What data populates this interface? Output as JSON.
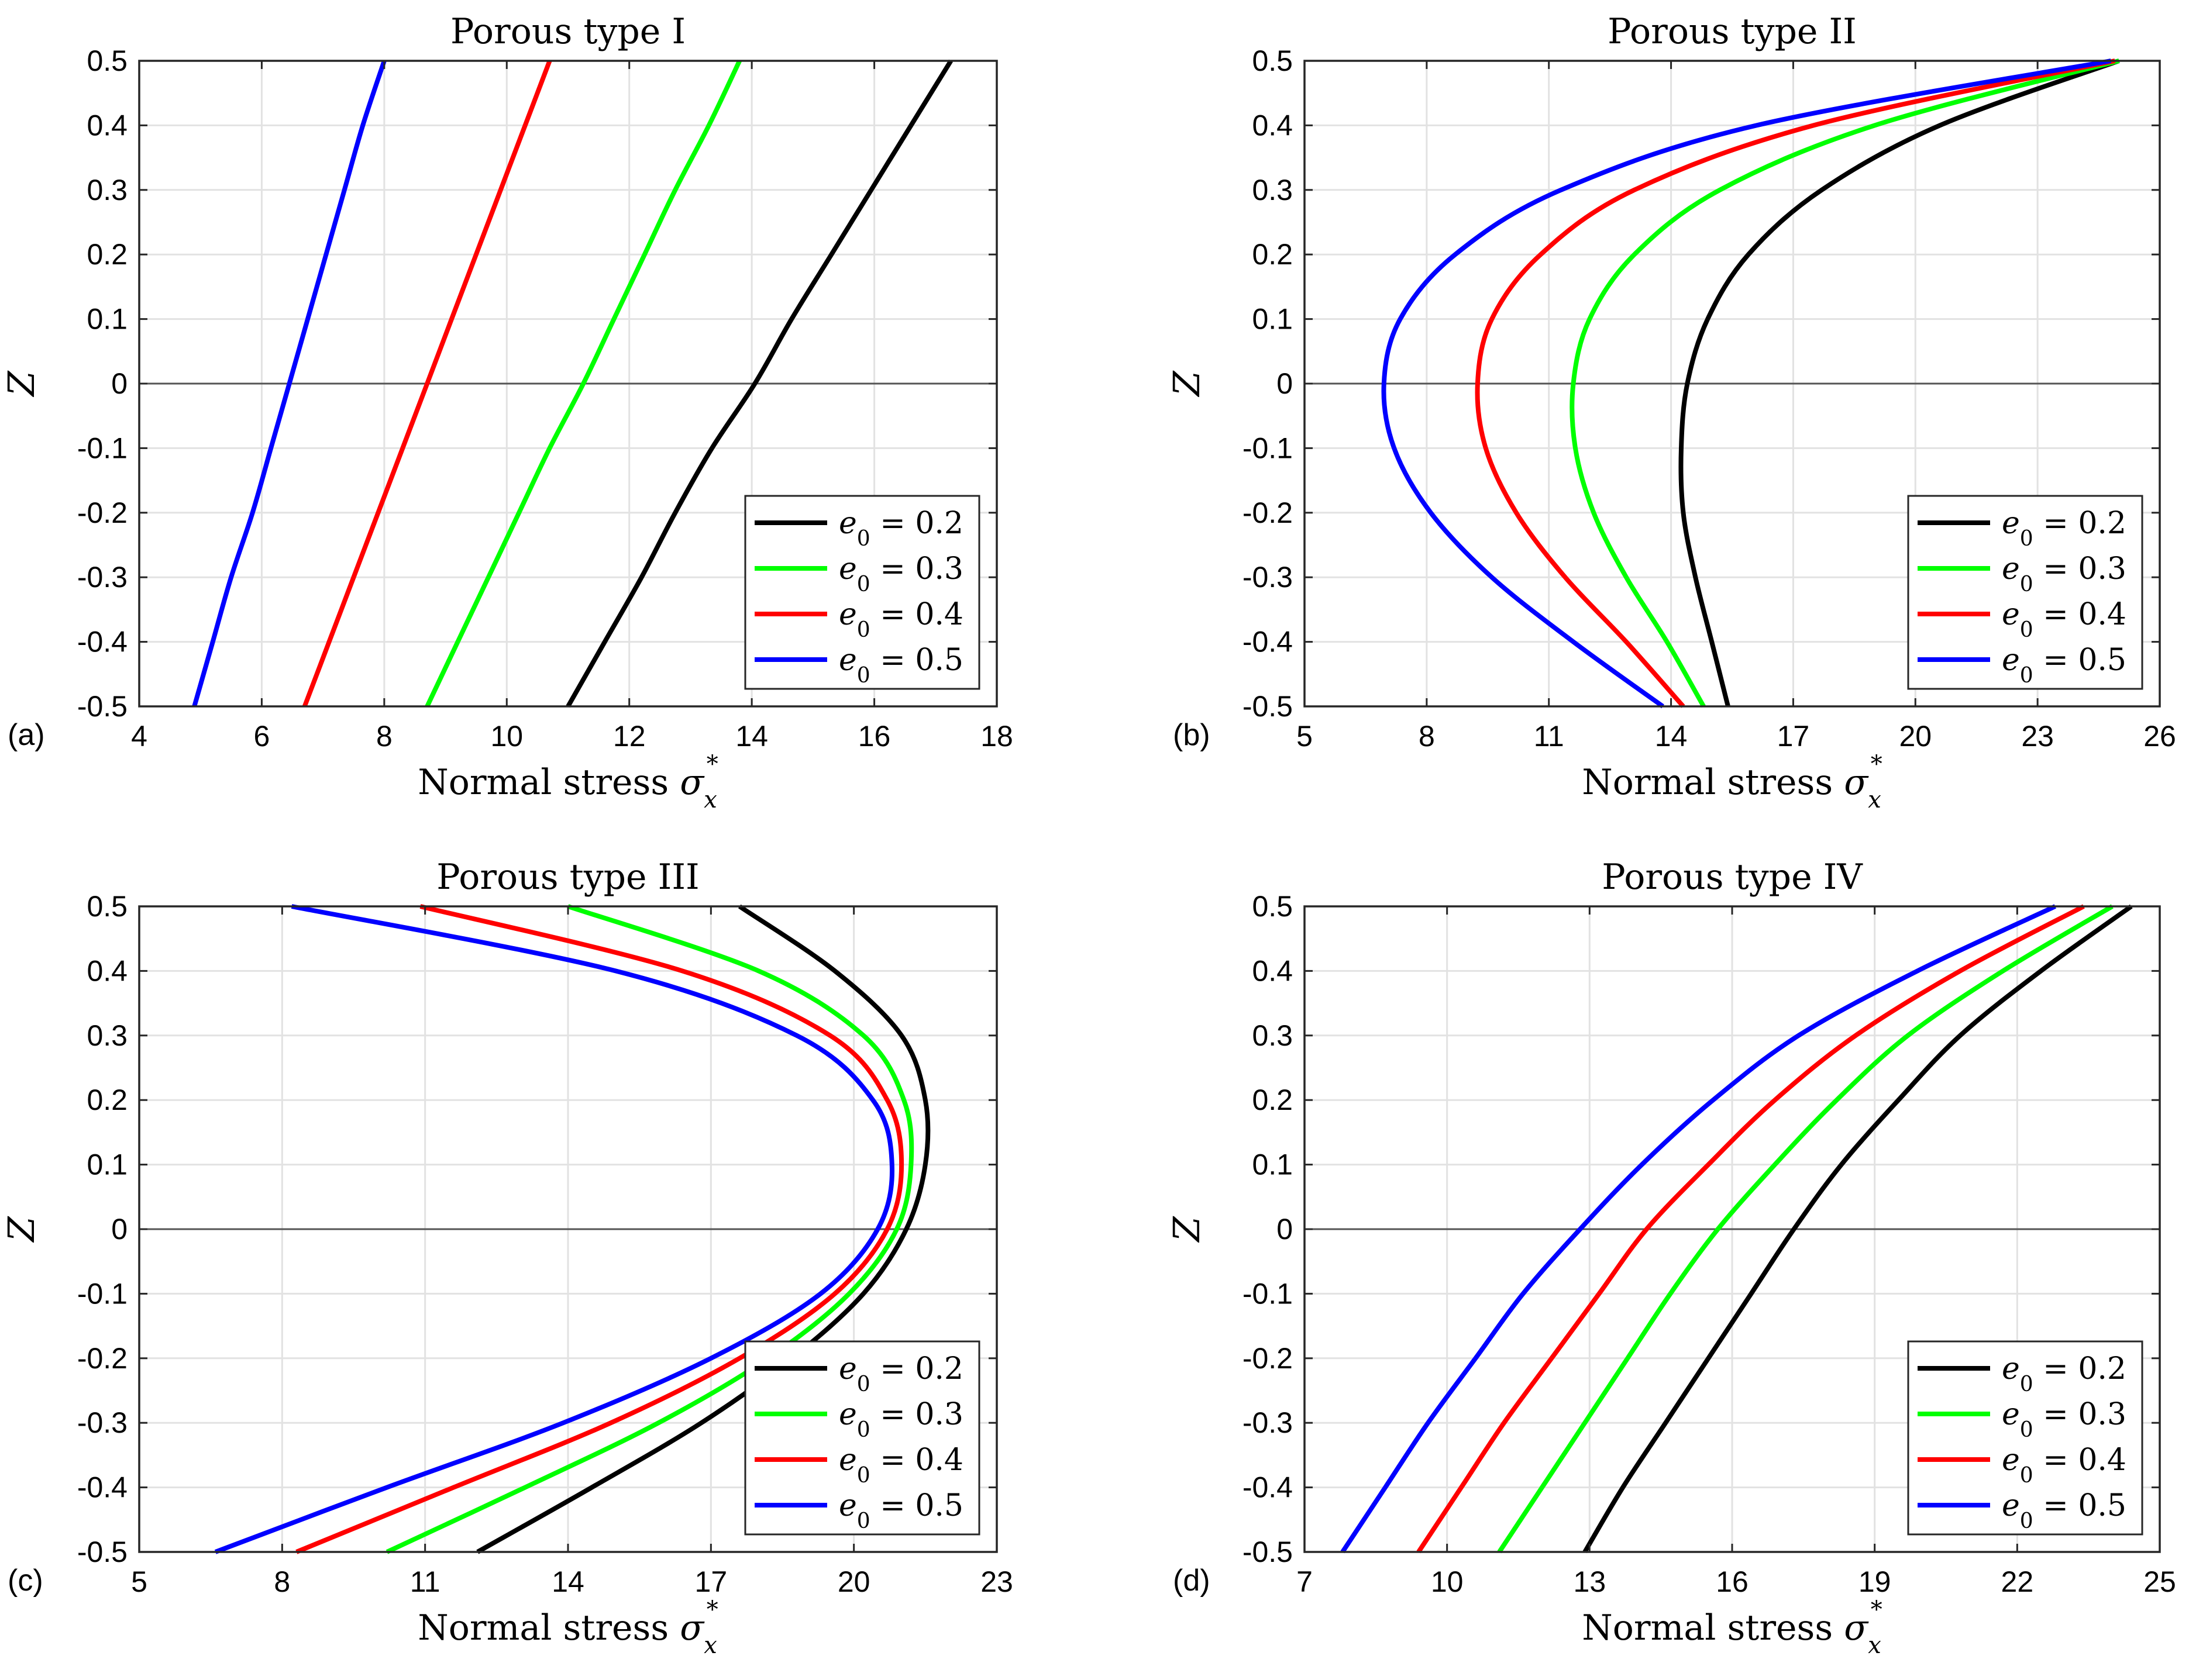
{
  "figure": {
    "colors": {
      "e0_0.2": "#000000",
      "e0_0.3": "#00ff00",
      "e0_0.4": "#ff0000",
      "e0_0.5": "#0000ff"
    }
  },
  "chart_data": [
    {
      "type": "line",
      "panel_label": "(a)",
      "title": "Porous type I",
      "xlabel": "Normal stress σx*",
      "ylabel": "Z",
      "xlim": [
        4,
        18
      ],
      "ylim": [
        -0.5,
        0.5
      ],
      "xticks": [
        "4",
        "6",
        "8",
        "10",
        "12",
        "14",
        "16",
        "18"
      ],
      "yticks": [
        "-0.5",
        "-0.4",
        "-0.3",
        "-0.2",
        "-0.1",
        "0",
        "0.1",
        "0.2",
        "0.3",
        "0.4",
        "0.5"
      ],
      "grid": true,
      "legend_position": "bottom-right",
      "y": [
        -0.5,
        -0.4,
        -0.3,
        -0.2,
        -0.1,
        0,
        0.1,
        0.2,
        0.3,
        0.4,
        0.5
      ],
      "series": [
        {
          "name": "e0 = 0.2",
          "color": "#000000",
          "x": [
            11.0,
            11.6,
            12.2,
            12.75,
            13.35,
            14.05,
            14.65,
            15.3,
            15.95,
            16.6,
            17.25
          ]
        },
        {
          "name": "e0 = 0.3",
          "color": "#00ff00",
          "x": [
            8.7,
            9.2,
            9.7,
            10.2,
            10.7,
            11.25,
            11.75,
            12.25,
            12.75,
            13.3,
            13.8
          ]
        },
        {
          "name": "e0 = 0.4",
          "color": "#ff0000",
          "x": [
            6.7,
            7.1,
            7.5,
            7.9,
            8.3,
            8.7,
            9.1,
            9.5,
            9.9,
            10.3,
            10.7
          ]
        },
        {
          "name": "e0 = 0.5",
          "color": "#0000ff",
          "x": [
            4.9,
            5.2,
            5.5,
            5.85,
            6.15,
            6.45,
            6.75,
            7.05,
            7.35,
            7.65,
            8.0
          ]
        }
      ]
    },
    {
      "type": "line",
      "panel_label": "(b)",
      "title": "Porous type II",
      "xlabel": "Normal stress σx*",
      "ylabel": "Z",
      "xlim": [
        5,
        26
      ],
      "ylim": [
        -0.5,
        0.5
      ],
      "xticks": [
        "5",
        "8",
        "11",
        "14",
        "17",
        "20",
        "23",
        "26"
      ],
      "yticks": [
        "-0.5",
        "-0.4",
        "-0.3",
        "-0.2",
        "-0.1",
        "0",
        "0.1",
        "0.2",
        "0.3",
        "0.4",
        "0.5"
      ],
      "grid": true,
      "legend_position": "bottom-right",
      "y": [
        -0.5,
        -0.4,
        -0.3,
        -0.2,
        -0.1,
        0,
        0.1,
        0.2,
        0.3,
        0.4,
        0.5
      ],
      "series": [
        {
          "name": "e0 = 0.2",
          "color": "#000000",
          "x": [
            15.4,
            15.0,
            14.6,
            14.3,
            14.25,
            14.4,
            14.9,
            15.9,
            17.7,
            20.6,
            25.0
          ]
        },
        {
          "name": "e0 = 0.3",
          "color": "#00ff00",
          "x": [
            14.8,
            13.9,
            12.9,
            12.1,
            11.65,
            11.6,
            12.0,
            13.1,
            15.2,
            19.0,
            25.0
          ]
        },
        {
          "name": "e0 = 0.4",
          "color": "#ff0000",
          "x": [
            14.3,
            12.9,
            11.4,
            10.2,
            9.45,
            9.25,
            9.6,
            10.8,
            13.1,
            17.5,
            24.9
          ]
        },
        {
          "name": "e0 = 0.5",
          "color": "#0000ff",
          "x": [
            13.8,
            11.6,
            9.6,
            8.1,
            7.2,
            6.95,
            7.35,
            8.7,
            11.3,
            16.1,
            24.8
          ]
        }
      ]
    },
    {
      "type": "line",
      "panel_label": "(c)",
      "title": "Porous type III",
      "xlabel": "Normal stress σx*",
      "ylabel": "Z",
      "xlim": [
        5,
        23
      ],
      "ylim": [
        -0.5,
        0.5
      ],
      "xticks": [
        "5",
        "8",
        "11",
        "14",
        "17",
        "20",
        "23"
      ],
      "yticks": [
        "-0.5",
        "-0.4",
        "-0.3",
        "-0.2",
        "-0.1",
        "0",
        "0.1",
        "0.2",
        "0.3",
        "0.4",
        "0.5"
      ],
      "grid": true,
      "legend_position": "bottom-right",
      "y": [
        -0.5,
        -0.4,
        -0.3,
        -0.2,
        -0.1,
        0,
        0.1,
        0.2,
        0.3,
        0.4,
        0.5
      ],
      "series": [
        {
          "name": "e0 = 0.2",
          "color": "#000000",
          "x": [
            12.1,
            14.5,
            16.8,
            18.7,
            20.2,
            21.1,
            21.5,
            21.5,
            21.0,
            19.6,
            17.6
          ]
        },
        {
          "name": "e0 = 0.3",
          "color": "#00ff00",
          "x": [
            10.2,
            13.1,
            15.9,
            18.2,
            19.9,
            20.9,
            21.2,
            21.05,
            20.2,
            18.0,
            14.0
          ]
        },
        {
          "name": "e0 = 0.4",
          "color": "#ff0000",
          "x": [
            8.3,
            11.6,
            14.9,
            17.6,
            19.6,
            20.7,
            21.0,
            20.7,
            19.5,
            16.4,
            10.9
          ]
        },
        {
          "name": "e0 = 0.5",
          "color": "#0000ff",
          "x": [
            6.6,
            10.2,
            13.9,
            17.0,
            19.3,
            20.5,
            20.8,
            20.4,
            18.8,
            15.0,
            8.2
          ]
        }
      ]
    },
    {
      "type": "line",
      "panel_label": "(d)",
      "title": "Porous type IV",
      "xlabel": "Normal stress σx*",
      "ylabel": "Z",
      "xlim": [
        7,
        25
      ],
      "ylim": [
        -0.5,
        0.5
      ],
      "xticks": [
        "7",
        "10",
        "13",
        "16",
        "19",
        "22",
        "25"
      ],
      "yticks": [
        "-0.5",
        "-0.4",
        "-0.3",
        "-0.2",
        "-0.1",
        "0",
        "0.1",
        "0.2",
        "0.3",
        "0.4",
        "0.5"
      ],
      "grid": true,
      "legend_position": "bottom-right",
      "y": [
        -0.5,
        -0.4,
        -0.3,
        -0.2,
        -0.1,
        0,
        0.1,
        0.2,
        0.3,
        0.4,
        0.5
      ],
      "series": [
        {
          "name": "e0 = 0.2",
          "color": "#000000",
          "x": [
            12.9,
            13.7,
            14.6,
            15.5,
            16.4,
            17.3,
            18.3,
            19.5,
            20.8,
            22.5,
            24.4
          ]
        },
        {
          "name": "e0 = 0.3",
          "color": "#00ff00",
          "x": [
            11.1,
            12.0,
            12.9,
            13.8,
            14.7,
            15.7,
            16.9,
            18.2,
            19.7,
            21.7,
            24.0
          ]
        },
        {
          "name": "e0 = 0.4",
          "color": "#ff0000",
          "x": [
            9.4,
            10.3,
            11.2,
            12.2,
            13.2,
            14.2,
            15.5,
            16.9,
            18.6,
            20.8,
            23.4
          ]
        },
        {
          "name": "e0 = 0.5",
          "color": "#0000ff",
          "x": [
            7.8,
            8.7,
            9.6,
            10.6,
            11.6,
            12.8,
            14.1,
            15.6,
            17.4,
            19.9,
            22.8
          ]
        }
      ]
    }
  ]
}
